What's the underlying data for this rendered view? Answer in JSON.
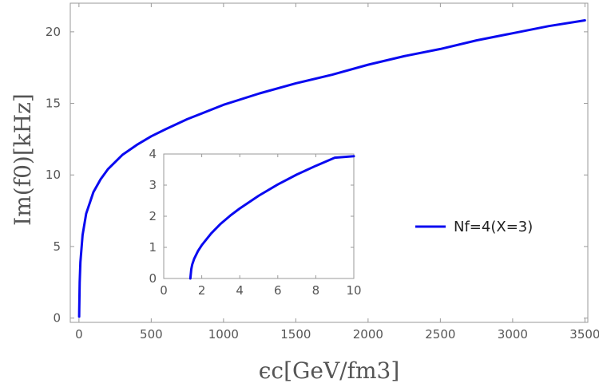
{
  "chart_data": [
    {
      "type": "line",
      "xlabel": "ϵc[GeV/fm3]",
      "ylabel": "Im(f0)[kHz]",
      "xlim": [
        -60,
        3520
      ],
      "ylim": [
        -0.3,
        22
      ],
      "xticks": [
        0,
        500,
        1000,
        1500,
        2000,
        2500,
        3000,
        3500
      ],
      "yticks": [
        0,
        5,
        10,
        15,
        20
      ],
      "grid": false,
      "legend_position": "right",
      "series": [
        {
          "name": "Nf=4(X=3)",
          "color": "#0a0af0",
          "x": [
            1.4,
            2,
            5,
            10,
            25,
            50,
            100,
            150,
            200,
            300,
            400,
            500,
            600,
            750,
            1000,
            1250,
            1500,
            1750,
            2000,
            2250,
            2500,
            2750,
            3000,
            3250,
            3500
          ],
          "y": [
            0.1,
            0.6,
            2.5,
            3.9,
            5.8,
            7.3,
            8.8,
            9.7,
            10.4,
            11.4,
            12.1,
            12.7,
            13.2,
            13.9,
            14.9,
            15.7,
            16.4,
            17.0,
            17.7,
            18.3,
            18.8,
            19.4,
            19.9,
            20.4,
            20.8
          ]
        }
      ]
    },
    {
      "type": "line",
      "xlim": [
        0,
        10
      ],
      "ylim": [
        0,
        4
      ],
      "xticks": [
        0,
        2,
        4,
        6,
        8,
        10
      ],
      "yticks": [
        0,
        1,
        2,
        3,
        4
      ],
      "grid": false,
      "series": [
        {
          "color": "#0a0af0",
          "x": [
            1.4,
            1.45,
            1.5,
            1.6,
            1.8,
            2.0,
            2.5,
            3.0,
            3.5,
            4.0,
            5.0,
            6.0,
            7.0,
            8.0,
            9.0,
            10.0
          ],
          "y": [
            0.0,
            0.3,
            0.45,
            0.63,
            0.88,
            1.07,
            1.45,
            1.76,
            2.02,
            2.25,
            2.66,
            3.02,
            3.34,
            3.62,
            3.88,
            3.93
          ]
        }
      ]
    }
  ]
}
